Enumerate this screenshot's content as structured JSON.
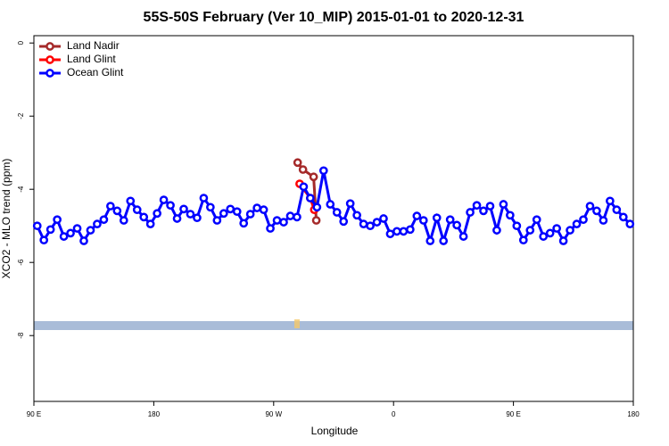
{
  "chart_data": {
    "type": "line",
    "title": "55S-50S February (Ver 10_MIP)   2015-01-01 to 2020-12-31",
    "x_label": "Longitude",
    "y_label": "XCO2 - MLO trend (ppm)",
    "xlim": [
      90,
      540
    ],
    "xticks": [
      {
        "value": 90,
        "label": "90 E"
      },
      180,
      {
        "value": 270,
        "label": "90 W"
      },
      {
        "value": 360,
        "label": "0"
      },
      {
        "value": 450,
        "label": "90 E"
      },
      {
        "value": 540,
        "label": "180"
      }
    ],
    "ylim": [
      -9.8,
      0.2
    ],
    "yticks": [
      0,
      -2,
      -4,
      -6,
      -8
    ],
    "legend": "top-left",
    "series": [
      {
        "name": "Land Nadir",
        "color": "#a52a2a",
        "x": [
          288,
          292,
          300,
          302
        ],
        "values": [
          -3.27,
          -3.46,
          -3.66,
          -4.85
        ]
      },
      {
        "name": "Land Glint",
        "color": "#ff0000",
        "x": [
          289.5,
          297.5,
          300.5
        ],
        "values": [
          -3.85,
          -4.24,
          -4.56
        ]
      },
      {
        "name": "Ocean Glint",
        "color": "#0000ff",
        "x": [
          92.5,
          97.5,
          102.5,
          107.5,
          112.5,
          117.5,
          122.5,
          127.5,
          132.5,
          137.5,
          142.5,
          147.5,
          152.5,
          157.5,
          162.5,
          167.5,
          172.5,
          177.5,
          182.5,
          187.5,
          192.5,
          197.5,
          202.5,
          207.5,
          212.5,
          217.5,
          222.5,
          227.5,
          232.5,
          237.5,
          242.5,
          247.5,
          252.5,
          257.5,
          262.5,
          267.5,
          272.5,
          277.5,
          282.5,
          287.5,
          292.5,
          297.5,
          302.5,
          307.5,
          312.5,
          317.5,
          322.5,
          327.5,
          332.5,
          337.5,
          342.5,
          347.5,
          352.5,
          357.5,
          362.5,
          367.5,
          372.5,
          377.5,
          382.5,
          387.5,
          392.5,
          397.5,
          402.5,
          407.5,
          412.5,
          417.5,
          422.5,
          427.5,
          432.5,
          437.5,
          442.5,
          447.5,
          452.5,
          457.5,
          462.5,
          467.5,
          472.5,
          477.5,
          482.5,
          487.5,
          492.5,
          497.5,
          502.5,
          507.5,
          512.5,
          517.5,
          522.5,
          527.5,
          532.5,
          537.5
        ],
        "values": [
          -5.0,
          -5.39,
          -5.1,
          -4.83,
          -5.29,
          -5.2,
          -5.07,
          -5.41,
          -5.12,
          -4.95,
          -4.83,
          -4.46,
          -4.59,
          -4.85,
          -4.32,
          -4.56,
          -4.76,
          -4.95,
          -4.66,
          -4.29,
          -4.44,
          -4.8,
          -4.54,
          -4.68,
          -4.78,
          -4.24,
          -4.49,
          -4.85,
          -4.66,
          -4.54,
          -4.61,
          -4.93,
          -4.68,
          -4.51,
          -4.56,
          -5.07,
          -4.85,
          -4.9,
          -4.73,
          -4.76,
          -3.93,
          -4.24,
          -4.49,
          -3.49,
          -4.41,
          -4.63,
          -4.88,
          -4.39,
          -4.71,
          -4.95,
          -5.0,
          -4.9,
          -4.8,
          -5.22,
          -5.15,
          -5.15,
          -5.1,
          -4.73,
          -4.85,
          -5.41,
          -4.78,
          -5.41,
          -4.83,
          -4.98,
          -5.29,
          -4.63,
          -4.44,
          -4.59,
          -4.46,
          -5.12,
          -4.41,
          -4.71,
          -5.0,
          -5.39,
          -5.12,
          -4.83,
          -5.29,
          -5.2,
          -5.07,
          -5.41,
          -5.12,
          -4.95,
          -4.83,
          -4.46,
          -4.59,
          -4.85,
          -4.32,
          -4.56,
          -4.76,
          -4.95
        ]
      }
    ]
  }
}
